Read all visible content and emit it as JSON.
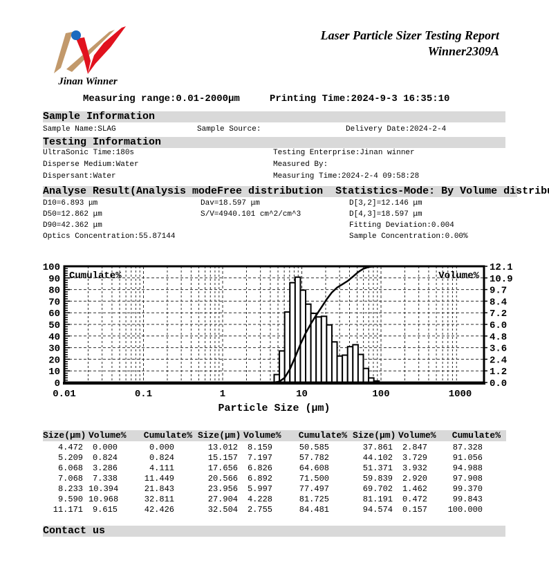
{
  "branding": {
    "company_name": "Jinan Winner",
    "logo_colors": {
      "tan": "#c2996b",
      "red": "#e1121e",
      "blue": "#1a6abf"
    }
  },
  "header": {
    "title_line1": "Laser Particle Sizer Testing Report",
    "title_line2": "Winner2309A"
  },
  "meta_line": {
    "measuring_range": "Measuring range:0.01-2000μm",
    "printing_time": "Printing Time:2024-9-3 16:35:10"
  },
  "sample_information": {
    "section_title": "Sample Information",
    "sample_name": "Sample Name:SLAG",
    "sample_source": "Sample Source:",
    "delivery_date": "Delivery Date:2024-2-4"
  },
  "testing_information": {
    "section_title": "Testing Information",
    "rows": [
      {
        "left": "UltraSonic Time:180s",
        "right": "Testing Enterprise:Jinan winner"
      },
      {
        "left": "Disperse Medium:Water",
        "right": "Measured By:"
      },
      {
        "left": "Dispersant:Water",
        "right": "Measuring Time:2024-2-4 09:58:28"
      }
    ]
  },
  "analyse_result": {
    "section_title": "Analyse Result(Analysis modeFree distribution  Statistics-Mode: By Volume distribution)",
    "rows": [
      [
        "D10=6.893 μm",
        "Dav=18.597 μm",
        "D[3,2]=12.146 μm"
      ],
      [
        "D50=12.862 μm",
        "S/V=4940.101 cm^2/cm^3",
        "D[4,3]=18.597 μm"
      ],
      [
        "D90=42.362 μm",
        "",
        "Fitting Deviation:0.004"
      ],
      [
        "Optics Concentration:55.87144",
        "",
        "Sample Concentration:0.00%"
      ]
    ]
  },
  "chart_data": {
    "type": "bar",
    "title": "",
    "x_axis": {
      "label": "Particle Size (μm)",
      "scale": "log",
      "min": 0.01,
      "max": 2000,
      "tick_values": [
        0.01,
        0.1,
        1,
        10,
        100,
        1000
      ],
      "tick_labels": [
        "0.01",
        "0.1",
        "1",
        "10",
        "100",
        "1000"
      ]
    },
    "left_axis": {
      "label": "Cumulate%",
      "min": 0,
      "max": 100,
      "tick_step": 10
    },
    "right_axis": {
      "label": "Volume%",
      "min": 0,
      "max": 12.1,
      "tick_labels_bottom_to_top": [
        "0.0",
        "1.2",
        "2.4",
        "3.6",
        "4.8",
        "6.0",
        "7.2",
        "8.4",
        "9.7",
        "10.9",
        "12.1"
      ]
    },
    "grid": "dashed",
    "sizes_um": [
      4.472,
      5.209,
      6.068,
      7.068,
      8.233,
      9.59,
      11.171,
      13.012,
      15.157,
      17.656,
      20.566,
      23.956,
      27.904,
      32.504,
      37.861,
      44.102,
      51.371,
      59.839,
      69.702,
      81.191,
      94.574
    ],
    "volume_percent_bins": [
      0.824,
      3.286,
      7.338,
      10.394,
      10.968,
      9.615,
      8.159,
      7.197,
      6.826,
      6.892,
      5.997,
      4.228,
      2.755,
      2.847,
      3.729,
      3.932,
      2.92,
      1.462,
      0.472,
      0.157
    ],
    "cumulate_percent": [
      0.0,
      0.824,
      4.111,
      11.449,
      21.843,
      32.811,
      42.426,
      50.585,
      57.782,
      64.608,
      71.5,
      77.497,
      81.725,
      84.481,
      87.328,
      91.056,
      94.988,
      97.908,
      99.37,
      99.843,
      100.0
    ]
  },
  "distribution_table": {
    "headers": [
      "Size(μm)",
      "Volume%",
      "Cumulate%",
      "Size(μm)",
      "Volume%",
      "Cumulate%",
      "Size(μm)",
      "Volume%",
      "Cumulate%"
    ],
    "rows": [
      [
        "4.472",
        "0.000",
        "0.000",
        "13.012",
        "8.159",
        "50.585",
        "37.861",
        "2.847",
        "87.328"
      ],
      [
        "5.209",
        "0.824",
        "0.824",
        "15.157",
        "7.197",
        "57.782",
        "44.102",
        "3.729",
        "91.056"
      ],
      [
        "6.068",
        "3.286",
        "4.111",
        "17.656",
        "6.826",
        "64.608",
        "51.371",
        "3.932",
        "94.988"
      ],
      [
        "7.068",
        "7.338",
        "11.449",
        "20.566",
        "6.892",
        "71.500",
        "59.839",
        "2.920",
        "97.908"
      ],
      [
        "8.233",
        "10.394",
        "21.843",
        "23.956",
        "5.997",
        "77.497",
        "69.702",
        "1.462",
        "99.370"
      ],
      [
        "9.590",
        "10.968",
        "32.811",
        "27.904",
        "4.228",
        "81.725",
        "81.191",
        "0.472",
        "99.843"
      ],
      [
        "11.171",
        "9.615",
        "42.426",
        "32.504",
        "2.755",
        "84.481",
        "94.574",
        "0.157",
        "100.000"
      ]
    ]
  },
  "contact": {
    "section_title": "Contact us"
  },
  "colors": {
    "section_band": "#d9d9d9",
    "text": "#000000"
  }
}
